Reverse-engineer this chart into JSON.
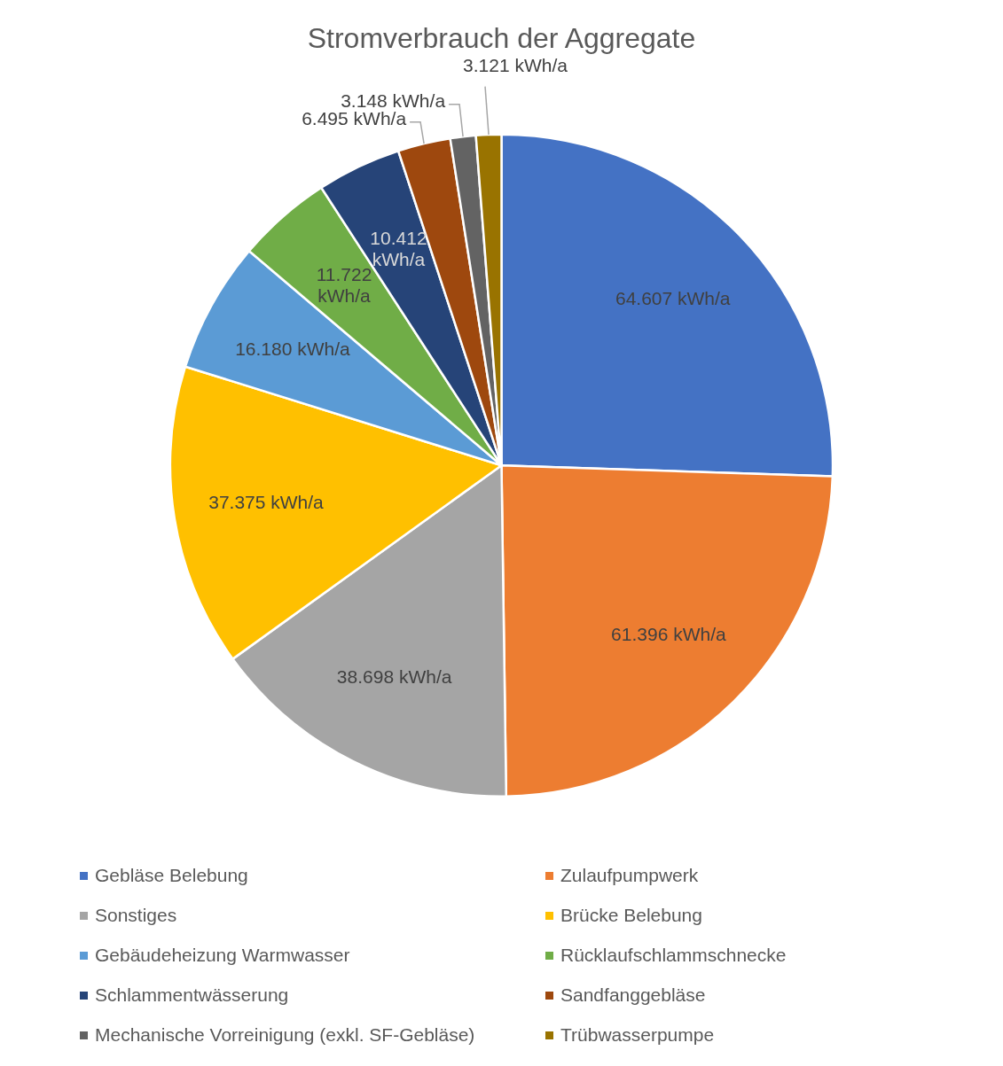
{
  "chart_data": {
    "type": "pie",
    "title": "Stromverbrauch der Aggregate",
    "categories": [
      "Gebläse Belebung",
      "Zulaufpumpwerk",
      "Sonstiges",
      "Brücke Belebung",
      "Gebäudeheizung Warmwasser",
      "Rücklaufschlammschnecke",
      "Schlammentwässerung",
      "Sandfanggebläse",
      "Mechanische Vorreinigung (exkl. SF-Gebläse)",
      "Trübwasserpumpe"
    ],
    "values": [
      64607,
      61396,
      38698,
      37375,
      16180,
      11722,
      10412,
      6495,
      3148,
      3121
    ],
    "value_labels": [
      "64.607 kWh/a",
      "61.396 kWh/a",
      "38.698 kWh/a",
      "37.375 kWh/a",
      "16.180 kWh/a",
      "11.722 kWh/a",
      "10.412 kWh/a",
      "6.495 kWh/a",
      "3.148 kWh/a",
      "3.121 kWh/a"
    ],
    "colors": [
      "#4472c4",
      "#ed7d31",
      "#a5a5a5",
      "#ffc000",
      "#5b9bd5",
      "#70ad47",
      "#264478",
      "#9e480e",
      "#636363",
      "#997300"
    ],
    "legend": "bottom"
  }
}
